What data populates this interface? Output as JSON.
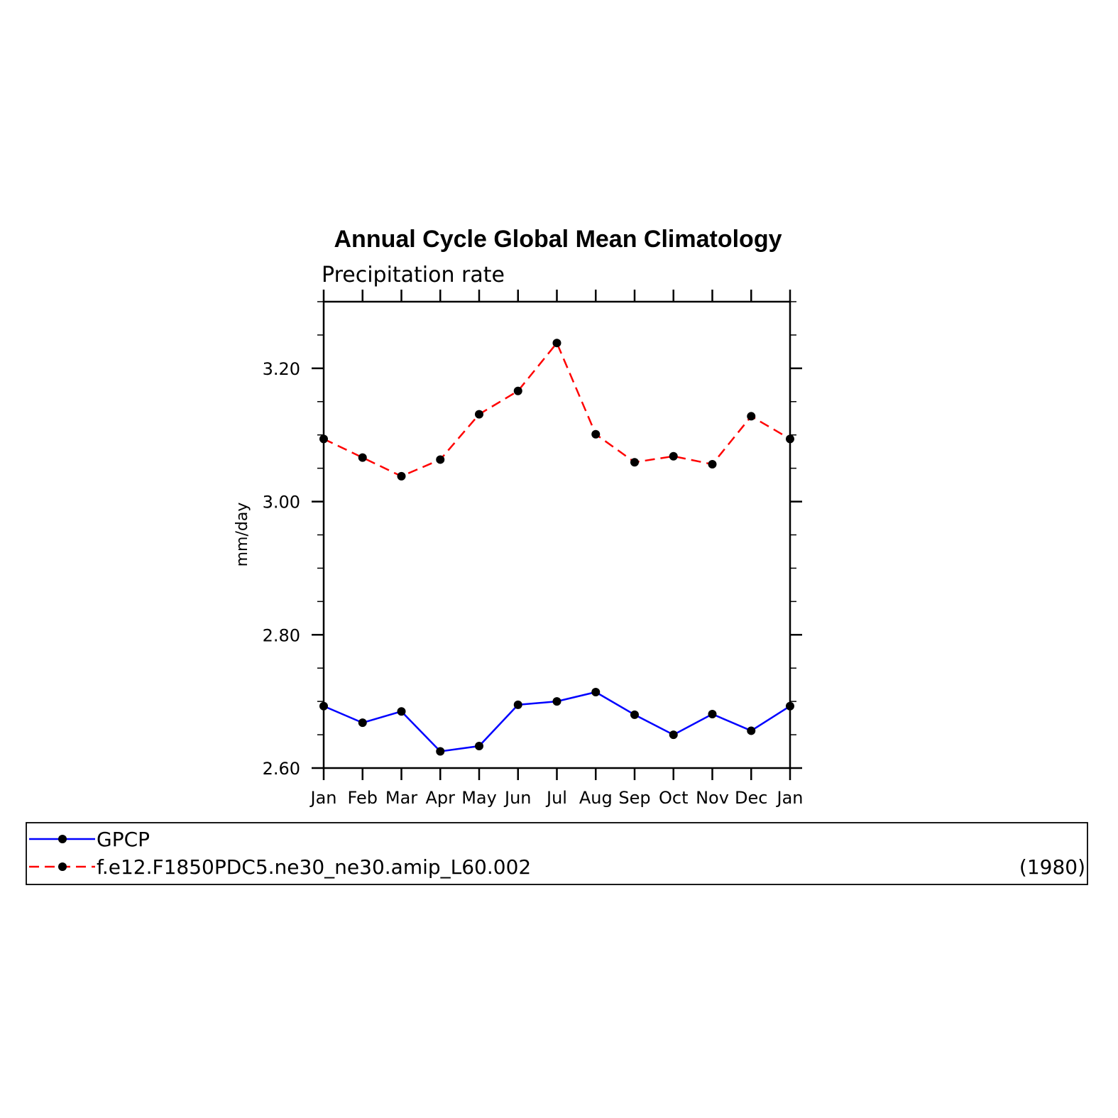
{
  "chart_data": {
    "type": "line",
    "title": "Annual Cycle Global Mean Climatology",
    "subtitle": "Precipitation rate",
    "ylabel": "mm/day",
    "xlabel": "",
    "categories": [
      "Jan",
      "Feb",
      "Mar",
      "Apr",
      "May",
      "Jun",
      "Jul",
      "Aug",
      "Sep",
      "Oct",
      "Nov",
      "Dec",
      "Jan"
    ],
    "ylim": [
      2.6,
      3.3
    ],
    "yticks": [
      2.6,
      2.8,
      3.0,
      3.2
    ],
    "ytick_labels": [
      "2.60",
      "2.80",
      "3.00",
      "3.20"
    ],
    "grid": false,
    "series": [
      {
        "name": "GPCP",
        "color": "#0000ff",
        "line_style": "solid",
        "marker": "dot",
        "values": [
          2.693,
          2.668,
          2.685,
          2.625,
          2.633,
          2.695,
          2.7,
          2.714,
          2.68,
          2.65,
          2.681,
          2.656,
          2.693
        ]
      },
      {
        "name": "f.e12.F1850PDC5.ne30_ne30.amip_L60.002",
        "color": "#ff0000",
        "line_style": "dashed",
        "marker": "dot",
        "values": [
          3.094,
          3.066,
          3.038,
          3.063,
          3.131,
          3.166,
          3.238,
          3.101,
          3.059,
          3.068,
          3.056,
          3.128,
          3.094
        ]
      }
    ],
    "legend": {
      "placement": "bottom",
      "entries": [
        {
          "label": "GPCP",
          "note": ""
        },
        {
          "label": "f.e12.F1850PDC5.ne30_ne30.amip_L60.002",
          "note": "(1980)"
        }
      ]
    }
  }
}
